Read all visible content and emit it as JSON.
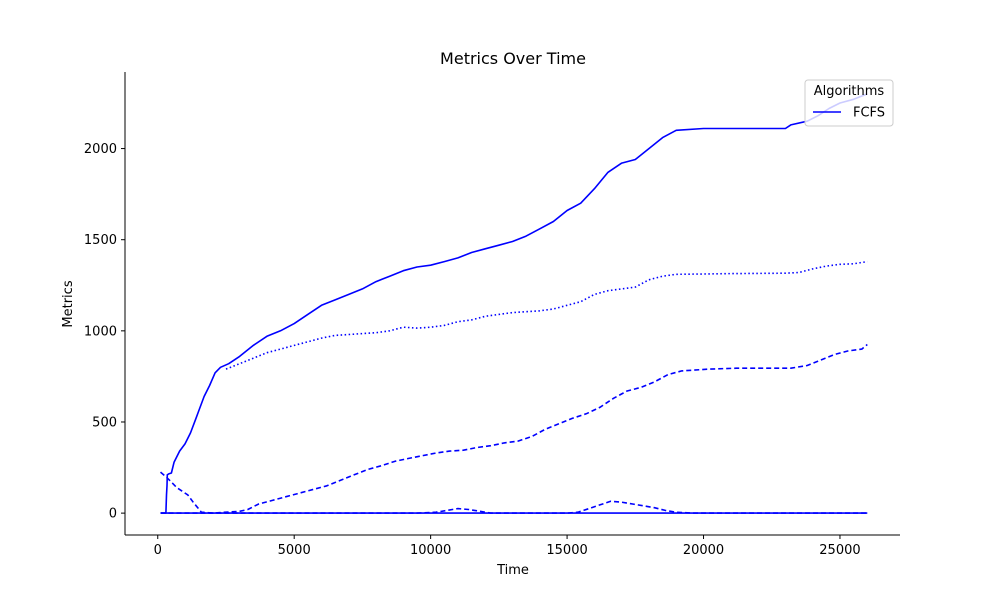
{
  "chart_data": {
    "type": "line",
    "title": "Metrics Over Time",
    "xlabel": "Time",
    "ylabel": "Metrics",
    "xlim": [
      -1200,
      27200
    ],
    "ylim": [
      -120,
      2420
    ],
    "xticks": [
      0,
      5000,
      10000,
      15000,
      20000,
      25000
    ],
    "xtick_labels": [
      "0",
      "5000",
      "10000",
      "15000",
      "20000",
      "25000"
    ],
    "yticks": [
      0,
      500,
      1000,
      1500,
      2000
    ],
    "ytick_labels": [
      "0",
      "500",
      "1000",
      "1500",
      "2000"
    ],
    "grid": false,
    "legend": {
      "title": "Algorithms",
      "placement": "top-right",
      "entries": [
        {
          "name": "FCFS",
          "color": "#0000ff"
        }
      ]
    },
    "series": [
      {
        "style": "solid",
        "color": "#0000ff",
        "x": [
          100,
          250,
          300,
          320,
          340,
          350,
          400,
          500,
          600,
          800,
          1000,
          1200,
          1400,
          1500,
          1700,
          1900,
          2100,
          2300,
          2600,
          3000,
          3500,
          4000,
          4500,
          5000,
          5500,
          6000,
          6500,
          7000,
          7500,
          8000,
          8500,
          9000,
          9500,
          10000,
          10500,
          11000,
          11500,
          12000,
          12500,
          13000,
          13500,
          14000,
          14500,
          15000,
          15500,
          16000,
          16500,
          17000,
          17500,
          18000,
          18500,
          19000,
          20000,
          21000,
          22000,
          23000,
          23200,
          23800,
          24200,
          24600,
          25000,
          25500,
          26000
        ],
        "y": [
          0,
          0,
          0,
          100,
          150,
          210,
          215,
          220,
          280,
          340,
          380,
          440,
          520,
          560,
          640,
          700,
          770,
          800,
          820,
          860,
          920,
          970,
          1000,
          1040,
          1090,
          1140,
          1170,
          1200,
          1230,
          1270,
          1300,
          1330,
          1350,
          1360,
          1380,
          1400,
          1430,
          1450,
          1470,
          1490,
          1520,
          1560,
          1600,
          1660,
          1700,
          1780,
          1870,
          1920,
          1940,
          2000,
          2060,
          2100,
          2110,
          2110,
          2110,
          2110,
          2130,
          2150,
          2180,
          2220,
          2250,
          2270,
          2300
        ]
      },
      {
        "style": "dotted",
        "color": "#0000ff",
        "x": [
          2500,
          3000,
          3500,
          4000,
          4500,
          5000,
          5500,
          6000,
          6500,
          7000,
          7500,
          8000,
          8500,
          9000,
          9500,
          10000,
          10500,
          11000,
          11500,
          12000,
          12500,
          13000,
          13500,
          14000,
          14500,
          15000,
          15500,
          16000,
          16500,
          17000,
          17500,
          18000,
          18500,
          19000,
          20000,
          21000,
          22000,
          23000,
          23500,
          24000,
          24500,
          25000,
          25500,
          26000
        ],
        "y": [
          790,
          820,
          850,
          880,
          900,
          920,
          940,
          960,
          975,
          980,
          985,
          990,
          1000,
          1020,
          1015,
          1020,
          1030,
          1050,
          1060,
          1080,
          1090,
          1100,
          1105,
          1110,
          1120,
          1140,
          1160,
          1200,
          1220,
          1230,
          1240,
          1280,
          1300,
          1310,
          1312,
          1314,
          1315,
          1316,
          1320,
          1340,
          1355,
          1365,
          1368,
          1380
        ]
      },
      {
        "style": "dashed",
        "color": "#0000ff",
        "x": [
          100,
          300,
          500,
          700,
          900,
          1100,
          1300,
          1600,
          2000,
          2500,
          3000,
          3300,
          3700,
          4200,
          4700,
          5200,
          5700,
          6200,
          6700,
          7200,
          7700,
          8200,
          8700,
          9200,
          9700,
          10200,
          10700,
          11200,
          11700,
          12200,
          12700,
          13200,
          13700,
          14200,
          14700,
          15200,
          15700,
          16200,
          16700,
          17200,
          17700,
          18200,
          18700,
          19200,
          20200,
          21200,
          22200,
          23200,
          23800,
          24300,
          24800,
          25300,
          25800,
          26000
        ],
        "y": [
          225,
          200,
          170,
          140,
          120,
          100,
          60,
          5,
          0,
          5,
          10,
          20,
          50,
          70,
          90,
          110,
          130,
          150,
          180,
          210,
          240,
          260,
          285,
          300,
          315,
          330,
          340,
          345,
          360,
          370,
          385,
          395,
          420,
          460,
          490,
          520,
          545,
          580,
          630,
          670,
          690,
          720,
          760,
          780,
          790,
          795,
          795,
          795,
          810,
          840,
          870,
          890,
          900,
          925
        ]
      },
      {
        "style": "dashed",
        "color": "#0000ff",
        "x": [
          100,
          1500,
          2500,
          3500,
          4500,
          6000,
          8000,
          9500,
          10200,
          10600,
          11000,
          11400,
          11800,
          12200,
          13000,
          14000,
          15000,
          15400,
          15800,
          16200,
          16600,
          17000,
          17400,
          17800,
          18200,
          18600,
          19000,
          19600,
          20500,
          23000,
          26000
        ],
        "y": [
          0,
          0,
          0,
          0,
          0,
          0,
          0,
          0,
          5,
          15,
          25,
          20,
          10,
          0,
          0,
          0,
          0,
          5,
          25,
          45,
          65,
          60,
          50,
          40,
          30,
          15,
          5,
          0,
          0,
          0,
          0
        ]
      },
      {
        "style": "solid",
        "color": "#0000ff",
        "x": [
          100,
          5000,
          10000,
          15000,
          20000,
          26000
        ],
        "y": [
          0,
          0,
          0,
          0,
          0,
          0
        ]
      }
    ]
  }
}
